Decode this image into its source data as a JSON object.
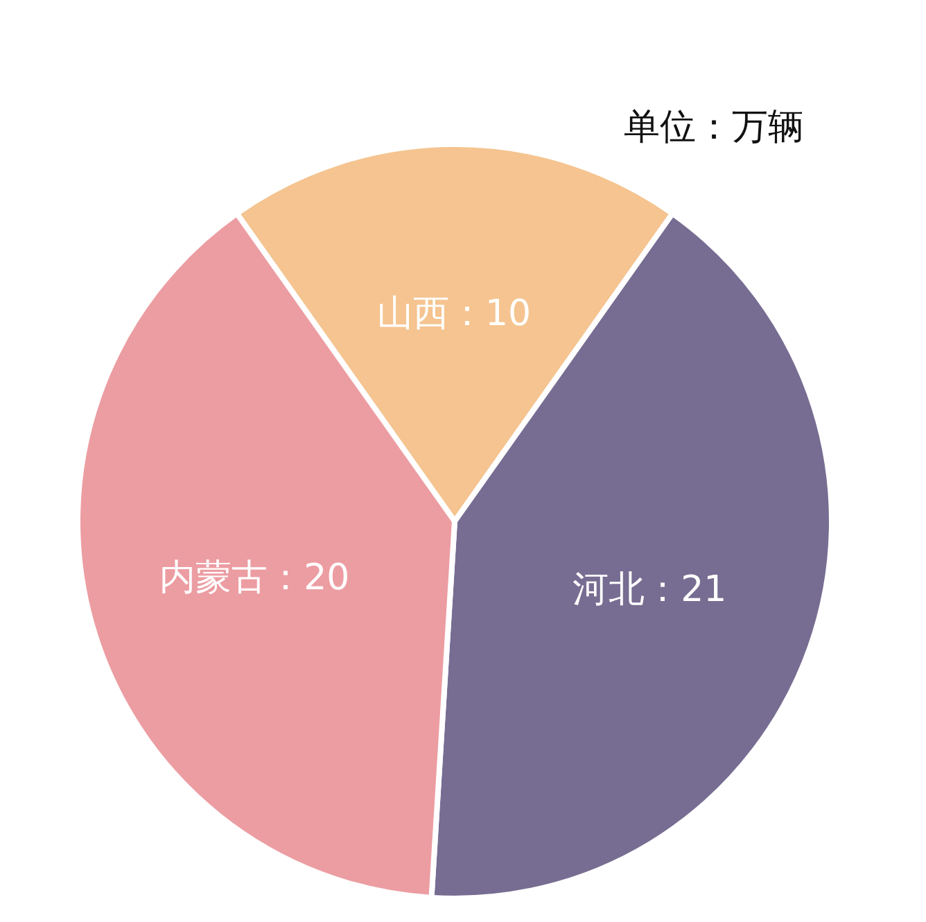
{
  "chart_data": {
    "type": "pie",
    "subtitle": "单位：万辆",
    "categories": [
      "山西",
      "河北",
      "内蒙古"
    ],
    "values": [
      10,
      21,
      20
    ],
    "colors": [
      "#f5c490",
      "#776d92",
      "#ec9da2"
    ],
    "value_labels": [
      "：10",
      "：21",
      "：20"
    ],
    "legend": false
  }
}
